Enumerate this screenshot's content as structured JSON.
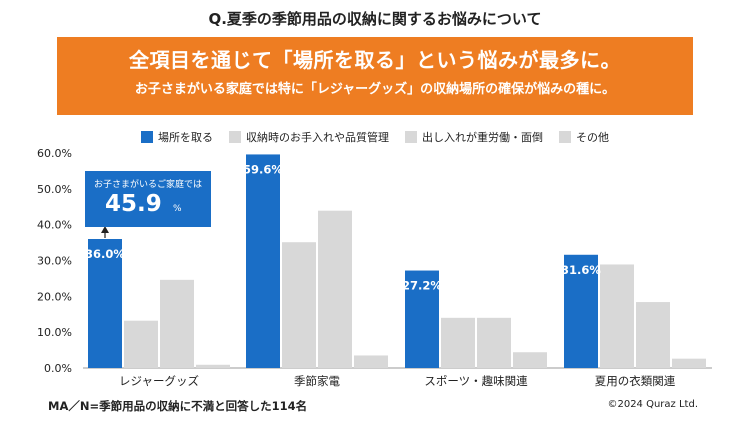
{
  "question": "Q.夏季の季節用品の収納に関するお悩みについて",
  "banner": {
    "headline": "全項目を通じて「場所を取る」という悩みが最多に。",
    "subline": "お子さまがいる家庭では特に「レジャーグッズ」の収納場所の確保が悩みの種に。"
  },
  "callout": {
    "text": "お子さまがいるご家庭では",
    "value": "45.9",
    "unit": "%"
  },
  "footnote": "MA／N=季節用品の収納に不満と回答した114名",
  "copyright": "©2024 Quraz Ltd.",
  "colors": {
    "primary": "#1a6ec6",
    "secondary": "#d8d8d8",
    "accent": "#ee7d22"
  },
  "chart_data": {
    "type": "bar",
    "categories": [
      "レジャーグッズ",
      "季節家電",
      "スポーツ・趣味関連",
      "夏用の衣類関連"
    ],
    "series": [
      {
        "name": "場所を取る",
        "values": [
          36.0,
          59.6,
          27.2,
          31.6
        ],
        "labels": [
          "36.0%",
          "59.6%",
          "27.2%",
          "31.6%"
        ]
      },
      {
        "name": "収納時のお手入れや品質管理",
        "values": [
          13.2,
          35.1,
          14.0,
          28.9
        ]
      },
      {
        "name": "出し入れが重労働・面倒",
        "values": [
          24.6,
          43.9,
          14.0,
          18.4
        ]
      },
      {
        "name": "その他",
        "values": [
          0.9,
          3.5,
          4.4,
          2.6
        ]
      }
    ],
    "yticks": [
      "0.0%",
      "10.0%",
      "20.0%",
      "30.0%",
      "40.0%",
      "50.0%",
      "60.0%"
    ],
    "ylim": [
      0,
      60
    ],
    "legend_position": "top",
    "grid": false
  }
}
